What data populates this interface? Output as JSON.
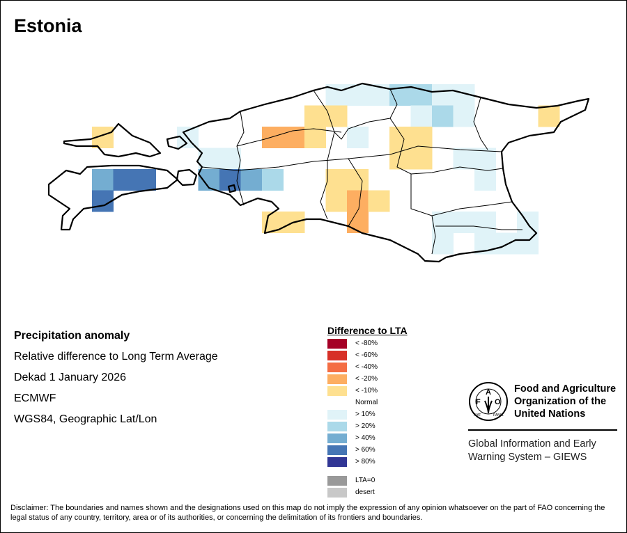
{
  "title": "Estonia",
  "info": {
    "heading": "Precipitation anomaly",
    "line1": "Relative difference to Long Term Average",
    "line2": "Dekad 1 January 2026",
    "line3": "ECMWF",
    "line4": "WGS84, Geographic Lat/Lon"
  },
  "legend": {
    "title": "Difference to LTA",
    "items": [
      {
        "label": "< -80%",
        "color": "#a50026"
      },
      {
        "label": "< -60%",
        "color": "#d73027"
      },
      {
        "label": "< -40%",
        "color": "#f46d43"
      },
      {
        "label": "< -20%",
        "color": "#fdae61"
      },
      {
        "label": "< -10%",
        "color": "#fee090"
      },
      {
        "label": "Normal",
        "color": "#ffffff"
      },
      {
        "label": "> 10%",
        "color": "#e0f3f8"
      },
      {
        "label": "> 20%",
        "color": "#abd9e9"
      },
      {
        "label": "> 40%",
        "color": "#74add1"
      },
      {
        "label": "> 60%",
        "color": "#4575b4"
      },
      {
        "label": "> 80%",
        "color": "#313695"
      },
      {
        "label": "LTA=0",
        "color": "#999999"
      },
      {
        "label": "desert",
        "color": "#c8c8c8"
      }
    ]
  },
  "grid_cells": [
    {
      "row": 0,
      "col": 11,
      "cls": "> 10%"
    },
    {
      "row": 0,
      "col": 12,
      "cls": "> 10%"
    },
    {
      "row": 0,
      "col": 13,
      "cls": "> 10%"
    },
    {
      "row": 0,
      "col": 14,
      "cls": "> 20%"
    },
    {
      "row": 0,
      "col": 15,
      "cls": "> 20%"
    },
    {
      "row": 0,
      "col": 16,
      "cls": "> 10%"
    },
    {
      "row": 0,
      "col": 17,
      "cls": "> 10%"
    },
    {
      "row": 1,
      "col": 10,
      "cls": "< -10%"
    },
    {
      "row": 1,
      "col": 11,
      "cls": "< -10%"
    },
    {
      "row": 1,
      "col": 15,
      "cls": "> 10%"
    },
    {
      "row": 1,
      "col": 16,
      "cls": "> 20%"
    },
    {
      "row": 1,
      "col": 17,
      "cls": "> 10%"
    },
    {
      "row": 1,
      "col": 21,
      "cls": "< -10%"
    },
    {
      "row": 2,
      "col": 0,
      "cls": "< -10%"
    },
    {
      "row": 2,
      "col": 4,
      "cls": "> 10%"
    },
    {
      "row": 2,
      "col": 8,
      "cls": "< -20%"
    },
    {
      "row": 2,
      "col": 9,
      "cls": "< -20%"
    },
    {
      "row": 2,
      "col": 10,
      "cls": "< -10%"
    },
    {
      "row": 2,
      "col": 12,
      "cls": "> 10%"
    },
    {
      "row": 2,
      "col": 14,
      "cls": "< -10%"
    },
    {
      "row": 2,
      "col": 15,
      "cls": "< -10%"
    },
    {
      "row": 3,
      "col": 5,
      "cls": "> 10%"
    },
    {
      "row": 3,
      "col": 6,
      "cls": "> 10%"
    },
    {
      "row": 3,
      "col": 14,
      "cls": "< -10%"
    },
    {
      "row": 3,
      "col": 15,
      "cls": "< -10%"
    },
    {
      "row": 3,
      "col": 17,
      "cls": "> 10%"
    },
    {
      "row": 3,
      "col": 18,
      "cls": "> 10%"
    },
    {
      "row": 4,
      "col": 0,
      "cls": "> 40%"
    },
    {
      "row": 4,
      "col": 1,
      "cls": "> 60%"
    },
    {
      "row": 4,
      "col": 2,
      "cls": "> 60%"
    },
    {
      "row": 4,
      "col": 5,
      "cls": "> 40%"
    },
    {
      "row": 4,
      "col": 6,
      "cls": "> 60%"
    },
    {
      "row": 4,
      "col": 7,
      "cls": "> 40%"
    },
    {
      "row": 4,
      "col": 8,
      "cls": "> 20%"
    },
    {
      "row": 4,
      "col": 11,
      "cls": "< -10%"
    },
    {
      "row": 4,
      "col": 12,
      "cls": "< -10%"
    },
    {
      "row": 4,
      "col": 18,
      "cls": "> 10%"
    },
    {
      "row": 5,
      "col": 0,
      "cls": "> 60%"
    },
    {
      "row": 5,
      "col": 11,
      "cls": "< -10%"
    },
    {
      "row": 5,
      "col": 12,
      "cls": "< -20%"
    },
    {
      "row": 5,
      "col": 13,
      "cls": "< -10%"
    },
    {
      "row": 6,
      "col": 8,
      "cls": "< -10%"
    },
    {
      "row": 6,
      "col": 9,
      "cls": "< -10%"
    },
    {
      "row": 6,
      "col": 12,
      "cls": "< -20%"
    },
    {
      "row": 6,
      "col": 16,
      "cls": "> 10%"
    },
    {
      "row": 6,
      "col": 17,
      "cls": "> 10%"
    },
    {
      "row": 6,
      "col": 18,
      "cls": "> 10%"
    },
    {
      "row": 6,
      "col": 20,
      "cls": "> 10%"
    },
    {
      "row": 7,
      "col": 16,
      "cls": "> 10%"
    },
    {
      "row": 7,
      "col": 18,
      "cls": "> 10%"
    },
    {
      "row": 7,
      "col": 19,
      "cls": "> 10%"
    },
    {
      "row": 7,
      "col": 20,
      "cls": "> 10%"
    }
  ],
  "fao": {
    "logo_text": "FAO FIAT PANIS",
    "name_line1": "Food and Agriculture",
    "name_line2": "Organization of the",
    "name_line3": "United Nations",
    "giews_line1": "Global Information and Early",
    "giews_line2": "Warning System – GIEWS"
  },
  "disclaimer": "Disclaimer: The boundaries and names shown and the designations used on this map do not imply the expression of any opinion whatsoever on the part of FAO concerning the legal status of any country, territory, area or of its authorities, or concerning the delimitation of its frontiers and boundaries."
}
